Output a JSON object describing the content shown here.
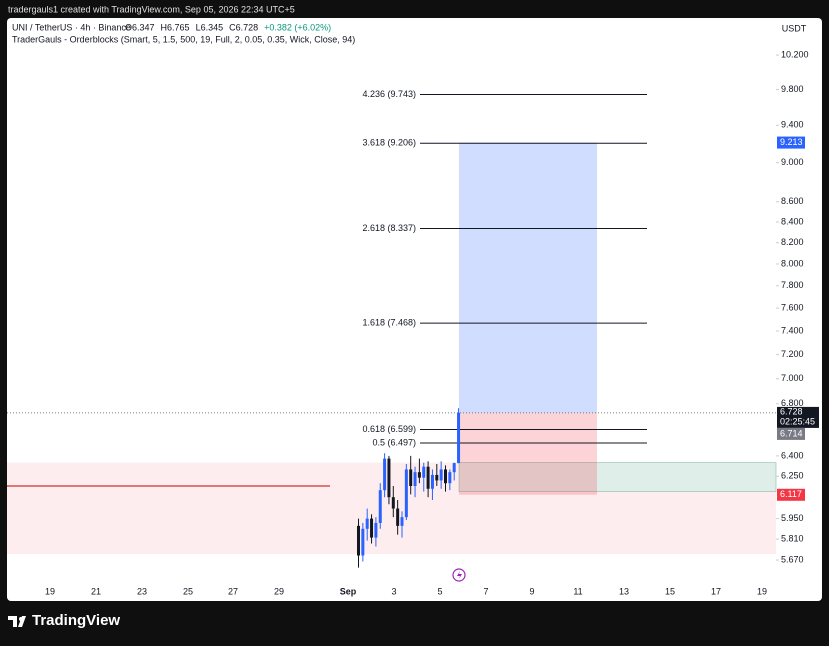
{
  "chart_data": {
    "type": "candlestick",
    "caption": "tradergauls1 created with TradingView.com, Sep 05, 2026 22:34 UTC+5",
    "symbol": "UNI / TetherUS · 4h · Binance",
    "ohlc": [
      "O6.347",
      "H6.765",
      "L6.345",
      "C6.728",
      "+0.382 (+6.02%)"
    ],
    "indicator": "TraderGauls - Orderblocks (Smart, 5, 1.5, 500, 19, Full, 2, 0.05, 0.35, Wick, Close, 94)",
    "currency": "USDT",
    "brand": "TradingView",
    "log": true,
    "up_color": "#2962ff",
    "down_color": "#131722",
    "open": [
      5.9,
      5.7,
      5.88,
      5.95,
      5.82,
      5.92,
      6.15,
      6.38,
      6.1,
      6.02,
      5.9,
      5.96,
      6.3,
      6.18,
      6.28,
      6.24,
      6.32,
      6.16,
      6.26,
      6.22,
      6.3,
      6.2,
      6.28,
      6.347
    ],
    "high": [
      5.95,
      5.92,
      6.02,
      5.98,
      5.96,
      6.2,
      6.42,
      6.4,
      6.18,
      6.08,
      6.0,
      6.34,
      6.4,
      6.32,
      6.38,
      6.35,
      6.36,
      6.3,
      6.34,
      6.36,
      6.33,
      6.3,
      6.35,
      6.765
    ],
    "low": [
      5.62,
      5.66,
      5.8,
      5.78,
      5.76,
      5.88,
      6.1,
      6.05,
      5.96,
      5.84,
      5.82,
      5.94,
      6.12,
      6.1,
      6.2,
      6.14,
      6.1,
      6.08,
      6.18,
      6.16,
      6.14,
      6.15,
      6.22,
      6.345
    ],
    "close": [
      5.7,
      5.88,
      5.95,
      5.82,
      5.92,
      6.15,
      6.38,
      6.1,
      6.02,
      5.9,
      5.96,
      6.3,
      6.18,
      6.28,
      6.24,
      6.32,
      6.16,
      6.26,
      6.22,
      6.3,
      6.2,
      6.28,
      6.347,
      6.728
    ],
    "ylim": [
      5.54,
      10.38
    ],
    "yticks": [
      {
        "value": 10.2,
        "label": "10.200"
      },
      {
        "value": 9.8,
        "label": "9.800"
      },
      {
        "value": 9.4,
        "label": "9.400"
      },
      {
        "value": 9.0,
        "label": "9.000"
      },
      {
        "value": 8.6,
        "label": "8.600"
      },
      {
        "value": 8.4,
        "label": "8.400"
      },
      {
        "value": 8.2,
        "label": "8.200"
      },
      {
        "value": 8.0,
        "label": "8.000"
      },
      {
        "value": 7.8,
        "label": "7.800"
      },
      {
        "value": 7.6,
        "label": "7.600"
      },
      {
        "value": 7.4,
        "label": "7.400"
      },
      {
        "value": 7.2,
        "label": "7.200"
      },
      {
        "value": 7.0,
        "label": "7.000"
      },
      {
        "value": 6.8,
        "label": "6.800"
      },
      {
        "value": 6.4,
        "label": "6.400"
      },
      {
        "value": 6.25,
        "label": "6.250"
      },
      {
        "value": 5.95,
        "label": "5.950"
      },
      {
        "value": 5.81,
        "label": "5.810"
      },
      {
        "value": 5.67,
        "label": "5.670"
      }
    ],
    "xticks": [
      "19",
      "21",
      "23",
      "25",
      "27",
      "29",
      "Sep",
      "3",
      "5",
      "7",
      "9",
      "11",
      "13",
      "15",
      "17",
      "19"
    ],
    "fib_levels": [
      {
        "label": "4.236 (9.743)",
        "value": 9.743
      },
      {
        "label": "3.618 (9.206)",
        "value": 9.206
      },
      {
        "label": "2.618 (8.337)",
        "value": 8.337
      },
      {
        "label": "1.618 (7.468)",
        "value": 7.468
      },
      {
        "label": "0.618 (6.599)",
        "value": 6.599
      },
      {
        "label": "0.5 (6.497)",
        "value": 6.497
      }
    ],
    "position": {
      "target": 9.213,
      "entry": 6.728,
      "stop": 6.117
    },
    "last_price": 6.728,
    "countdown": "02:25:45",
    "prev_close": 6.714,
    "orderblocks": {
      "zone": [
        5.71,
        6.35
      ],
      "inner_zone": [
        6.14,
        6.35
      ],
      "line": 6.18
    }
  }
}
